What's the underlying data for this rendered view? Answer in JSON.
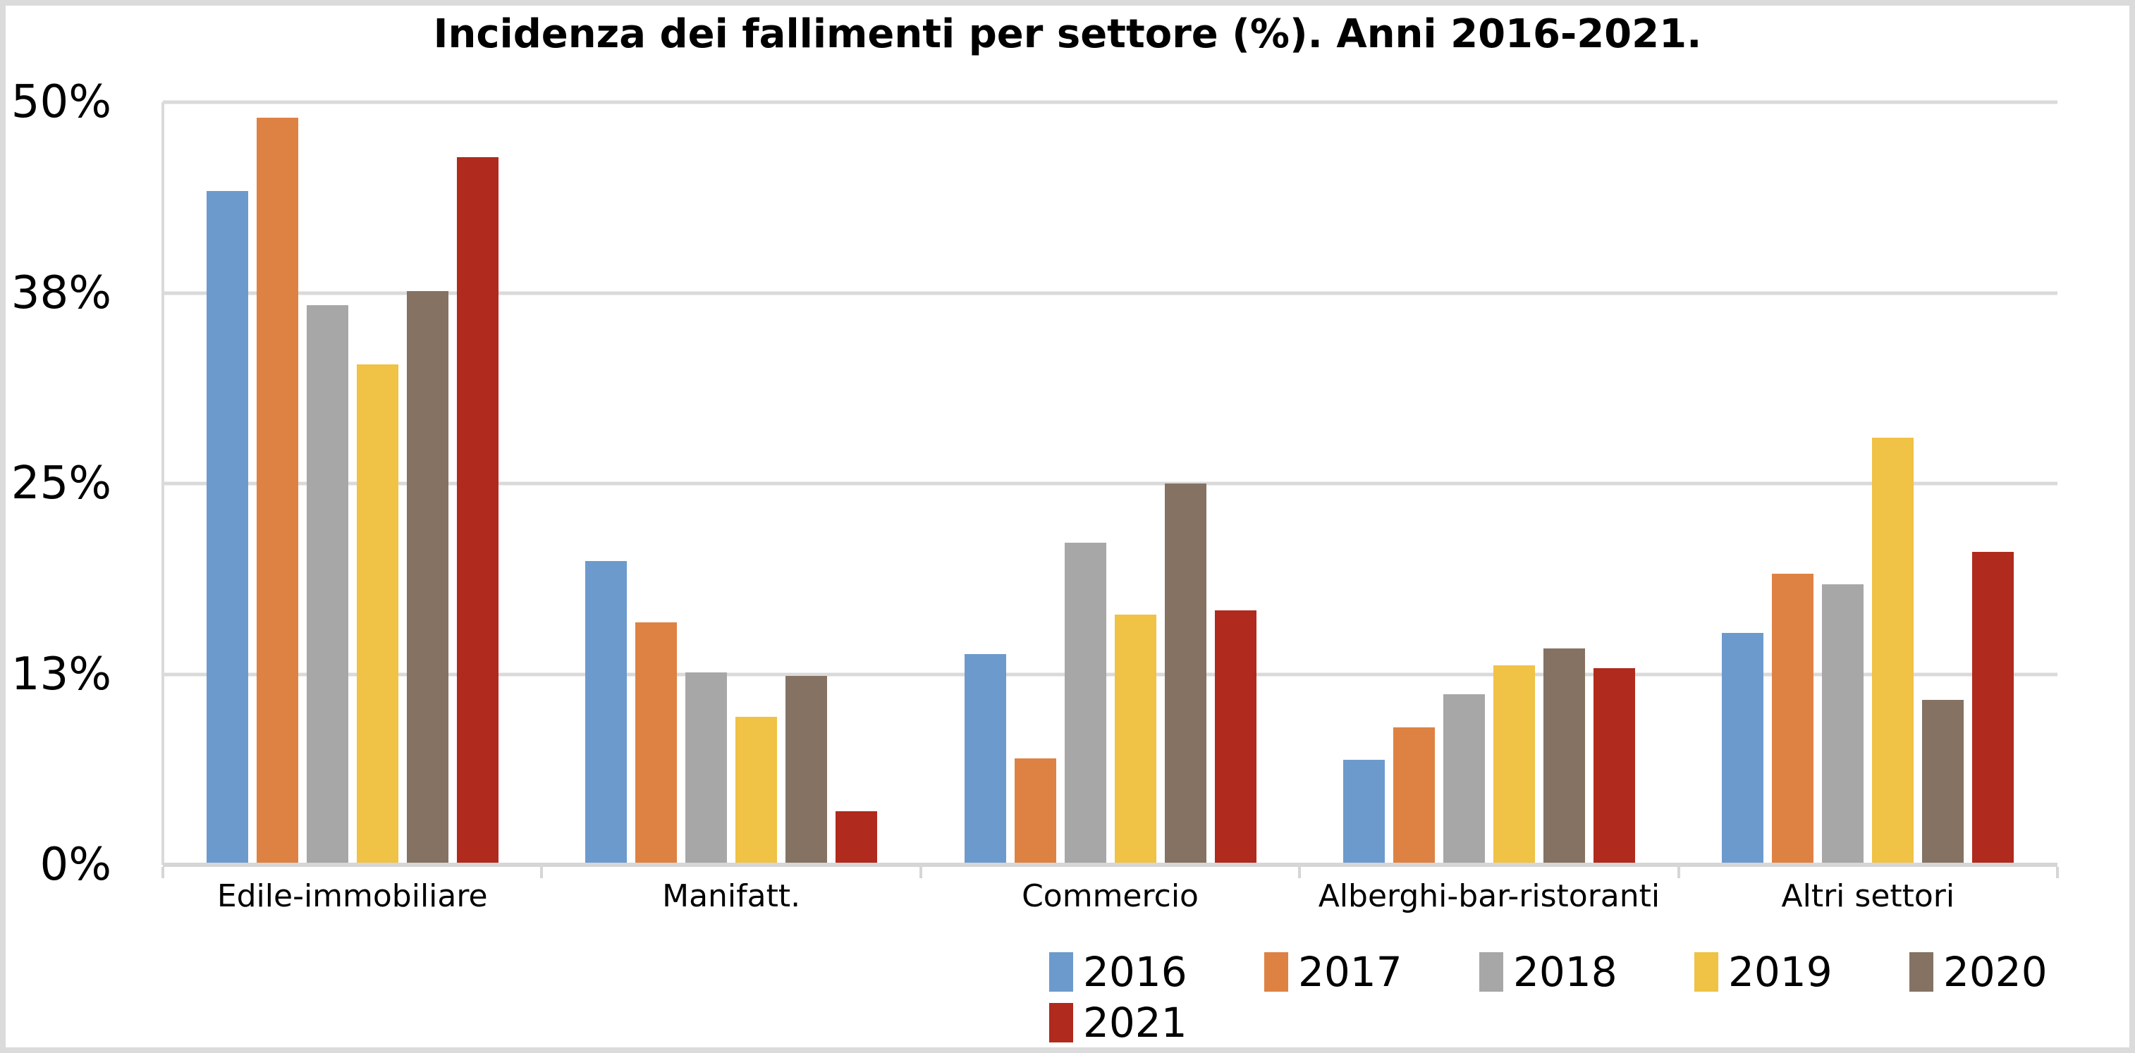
{
  "chart_data": {
    "type": "bar",
    "title": "Incidenza dei fallimenti per settore (%). Anni 2016-2021.",
    "categories": [
      "Edile-immobiliare",
      "Manifatt.",
      "Commercio",
      "Alberghi-bar-ristoranti",
      "Altri settori"
    ],
    "series": [
      {
        "name": "2016",
        "color": "#6d9acd",
        "values": [
          44.2,
          19.9,
          13.8,
          6.9,
          15.2
        ]
      },
      {
        "name": "2017",
        "color": "#de8244",
        "values": [
          49.0,
          15.9,
          7.0,
          9.0,
          19.1
        ]
      },
      {
        "name": "2018",
        "color": "#a7a7a7",
        "values": [
          36.7,
          12.6,
          21.1,
          11.2,
          18.4
        ]
      },
      {
        "name": "2019",
        "color": "#f0c245",
        "values": [
          32.8,
          9.7,
          16.4,
          13.1,
          28.0
        ]
      },
      {
        "name": "2020",
        "color": "#857263",
        "values": [
          37.6,
          12.4,
          25.0,
          14.2,
          10.8
        ]
      },
      {
        "name": "2021",
        "color": "#b02a1d",
        "values": [
          46.4,
          3.5,
          16.7,
          12.9,
          20.5
        ]
      }
    ],
    "y_ticks": [
      {
        "label": "50%",
        "value": 50
      },
      {
        "label": "38%",
        "value": 37.5
      },
      {
        "label": "25%",
        "value": 25
      },
      {
        "label": "13%",
        "value": 12.5
      },
      {
        "label": "0%",
        "value": 0
      }
    ],
    "ylim": [
      0,
      50
    ],
    "grid": true,
    "legend_position": "bottom",
    "colors": {
      "gridline": "#dadada",
      "frame": "#dbdbdb",
      "text": "#000000",
      "background": "#ffffff"
    }
  }
}
